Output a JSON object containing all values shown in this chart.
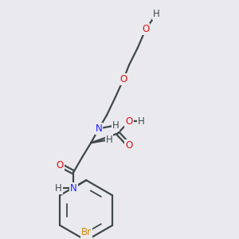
{
  "background_color": "#eaeaee",
  "atom_colors": {
    "C": "#404848",
    "H": "#404848",
    "N": "#2020ff",
    "O": "#dd1111",
    "Br": "#cc8800"
  },
  "bond_color": "#404848",
  "bond_width": 1.6,
  "figsize": [
    3.0,
    3.0
  ],
  "dpi": 100
}
